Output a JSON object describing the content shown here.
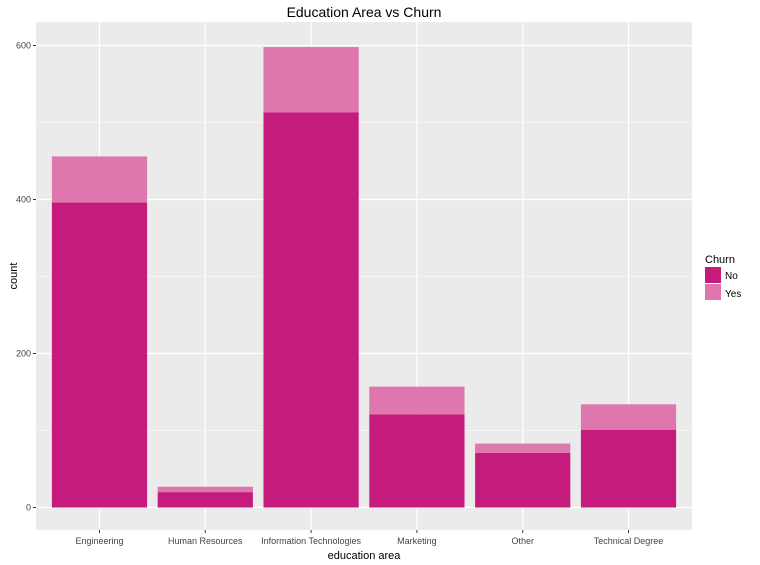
{
  "chart_data": {
    "type": "bar",
    "stacked": true,
    "title": "Education Area vs Churn",
    "xlabel": "education area",
    "ylabel": "count",
    "categories": [
      "Engineering",
      "Human Resources",
      "Information Technologies",
      "Marketing",
      "Other",
      "Technical Degree"
    ],
    "series": [
      {
        "name": "No",
        "values": [
          396,
          20,
          513,
          121,
          71,
          101
        ],
        "color": "#c51b7d"
      },
      {
        "name": "Yes",
        "values": [
          60,
          7,
          85,
          36,
          12,
          33
        ],
        "color": "#de77ae"
      }
    ],
    "ylim": [
      0,
      625
    ],
    "yticks": [
      0,
      200,
      400,
      600
    ],
    "legend": {
      "title": "Churn",
      "position": "right"
    },
    "grid": true,
    "panel_background": "#ebebeb",
    "grid_color": "#ffffff"
  }
}
